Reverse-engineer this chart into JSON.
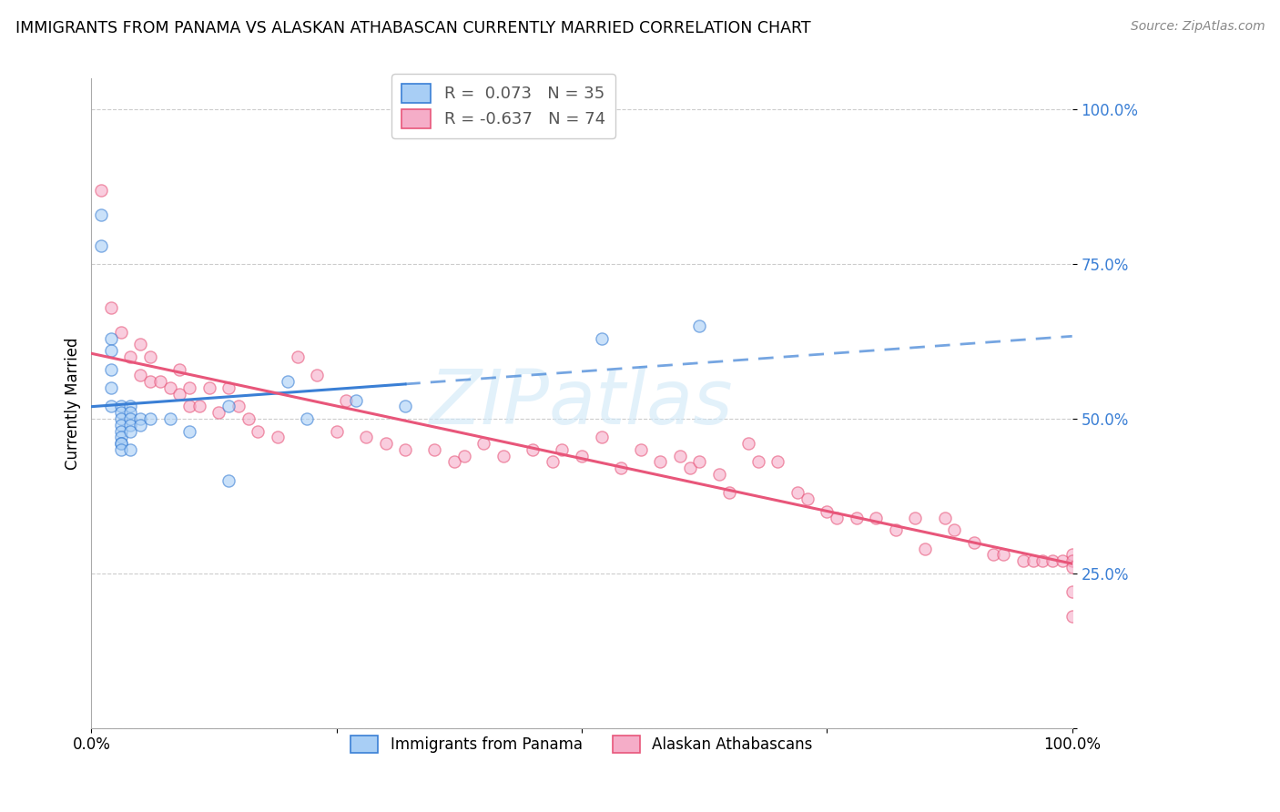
{
  "title": "IMMIGRANTS FROM PANAMA VS ALASKAN ATHABASCAN CURRENTLY MARRIED CORRELATION CHART",
  "source": "Source: ZipAtlas.com",
  "ylabel": "Currently Married",
  "y_ticks": [
    0.0,
    0.25,
    0.5,
    0.75,
    1.0
  ],
  "y_tick_labels": [
    "",
    "25.0%",
    "50.0%",
    "75.0%",
    "100.0%"
  ],
  "x_range": [
    0.0,
    1.0
  ],
  "y_range": [
    0.0,
    1.05
  ],
  "legend_r1": "R =  0.073",
  "legend_n1": "N = 35",
  "legend_r2": "R = -0.637",
  "legend_n2": "N = 74",
  "blue_color": "#a8cef5",
  "pink_color": "#f5adc8",
  "blue_line_color": "#3a7fd5",
  "pink_line_color": "#e8567a",
  "scatter_size": 90,
  "scatter_alpha": 0.6,
  "watermark_text": "ZIPatlas",
  "blue_points_x": [
    0.01,
    0.01,
    0.02,
    0.02,
    0.02,
    0.02,
    0.02,
    0.03,
    0.03,
    0.03,
    0.03,
    0.03,
    0.03,
    0.03,
    0.03,
    0.03,
    0.04,
    0.04,
    0.04,
    0.04,
    0.04,
    0.04,
    0.05,
    0.05,
    0.06,
    0.08,
    0.1,
    0.14,
    0.14,
    0.2,
    0.22,
    0.27,
    0.32,
    0.52,
    0.62
  ],
  "blue_points_y": [
    0.83,
    0.78,
    0.63,
    0.61,
    0.58,
    0.55,
    0.52,
    0.52,
    0.51,
    0.5,
    0.49,
    0.48,
    0.47,
    0.46,
    0.46,
    0.45,
    0.52,
    0.51,
    0.5,
    0.49,
    0.48,
    0.45,
    0.5,
    0.49,
    0.5,
    0.5,
    0.48,
    0.52,
    0.4,
    0.56,
    0.5,
    0.53,
    0.52,
    0.63,
    0.65
  ],
  "pink_points_x": [
    0.01,
    0.02,
    0.03,
    0.04,
    0.05,
    0.05,
    0.06,
    0.06,
    0.07,
    0.08,
    0.09,
    0.09,
    0.1,
    0.1,
    0.11,
    0.12,
    0.13,
    0.14,
    0.15,
    0.16,
    0.17,
    0.19,
    0.21,
    0.23,
    0.25,
    0.26,
    0.28,
    0.3,
    0.32,
    0.35,
    0.37,
    0.38,
    0.4,
    0.42,
    0.45,
    0.47,
    0.48,
    0.5,
    0.52,
    0.54,
    0.56,
    0.58,
    0.6,
    0.61,
    0.62,
    0.64,
    0.65,
    0.67,
    0.68,
    0.7,
    0.72,
    0.73,
    0.75,
    0.76,
    0.78,
    0.8,
    0.82,
    0.84,
    0.85,
    0.87,
    0.88,
    0.9,
    0.92,
    0.93,
    0.95,
    0.96,
    0.97,
    0.98,
    0.99,
    1.0,
    1.0,
    1.0,
    1.0,
    1.0
  ],
  "pink_points_y": [
    0.87,
    0.68,
    0.64,
    0.6,
    0.62,
    0.57,
    0.6,
    0.56,
    0.56,
    0.55,
    0.58,
    0.54,
    0.55,
    0.52,
    0.52,
    0.55,
    0.51,
    0.55,
    0.52,
    0.5,
    0.48,
    0.47,
    0.6,
    0.57,
    0.48,
    0.53,
    0.47,
    0.46,
    0.45,
    0.45,
    0.43,
    0.44,
    0.46,
    0.44,
    0.45,
    0.43,
    0.45,
    0.44,
    0.47,
    0.42,
    0.45,
    0.43,
    0.44,
    0.42,
    0.43,
    0.41,
    0.38,
    0.46,
    0.43,
    0.43,
    0.38,
    0.37,
    0.35,
    0.34,
    0.34,
    0.34,
    0.32,
    0.34,
    0.29,
    0.34,
    0.32,
    0.3,
    0.28,
    0.28,
    0.27,
    0.27,
    0.27,
    0.27,
    0.27,
    0.28,
    0.27,
    0.26,
    0.22,
    0.18
  ]
}
